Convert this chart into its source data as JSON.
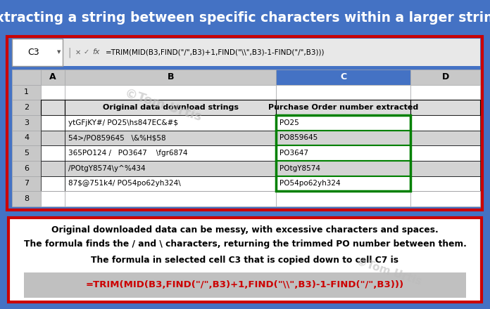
{
  "title": "Extracting a string between specific characters within a larger string",
  "title_color": "#FFFFFF",
  "title_bg": "#000000",
  "title_fontsize": 13.5,
  "formula_bar_text": "=TRIM(MID(B3,FIND(\"/\",B3)+1,FIND(\"\\\\\",B3)-1-FIND(\"/\",B3)))",
  "cell_ref": "C3",
  "col_headers": [
    "A",
    "B",
    "C",
    "D"
  ],
  "row_numbers": [
    "1",
    "2",
    "3",
    "4",
    "5",
    "6",
    "7",
    "8"
  ],
  "header_row": [
    "Original data download strings",
    "Purchase Order number extracted"
  ],
  "data_rows": [
    [
      "ytGFjKY#/ PO25\\hs847EC&#$",
      "PO25"
    ],
    [
      "54>/PO859645   \\&%H$58",
      "PO859645"
    ],
    [
      "365PO124 /   PO3647    \\fgr6874",
      "PO3647"
    ],
    [
      "/POtgY8574\\y^%434",
      "POtgY8574"
    ],
    [
      "87$@751k4/ PO54po62yh324\\",
      "PO54po62yh324"
    ]
  ],
  "row_bg_white": "#FFFFFF",
  "row_bg_gray": "#D3D3D3",
  "header_bg": "#DCDCDC",
  "green_border": "#008000",
  "outer_bg": "#4472C4",
  "spreadsheet_border": "#CC0000",
  "bottom_box_bg": "#FFFFFF",
  "bottom_text1": "Original downloaded data can be messy, with excessive characters and spaces.",
  "bottom_text2": "The formula finds the / and \\ characters, returning the trimmed PO number between them.",
  "bottom_text3": "The formula in selected cell C3 that is copied down to cell C7 is",
  "bottom_formula": "=TRIM(MID(B3,FIND(\"/\",B3)+1,FIND(\"\\\\\",B3)-1-FIND(\"/\",B3)))",
  "formula_bg": "#C0C0C0",
  "watermark": "©Tom Urtis",
  "watermark_color": "#BBBBBB"
}
